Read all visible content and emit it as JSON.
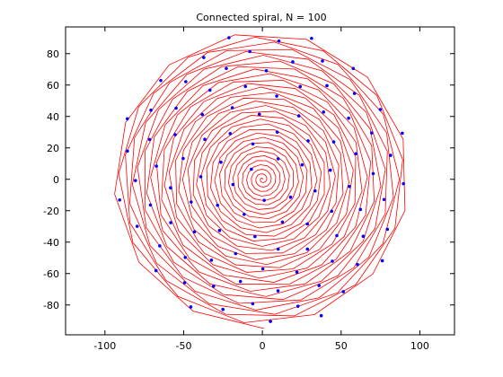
{
  "chart_data": {
    "type": "line",
    "title": "Connected spiral, N = 100",
    "xlabel": "",
    "ylabel": "",
    "xlim": [
      -125,
      122
    ],
    "ylim": [
      -99,
      97
    ],
    "xticks": [
      -100,
      -50,
      0,
      50,
      100
    ],
    "xtick_labels": [
      "-100",
      "-50",
      "0",
      "50",
      "100"
    ],
    "yticks": [
      -80,
      -60,
      -40,
      -20,
      0,
      20,
      40,
      60,
      80
    ],
    "ytick_labels": [
      "-80",
      "-60",
      "-40",
      "-20",
      "0",
      "20",
      "40",
      "60",
      "80"
    ],
    "grid": false,
    "legend": "none",
    "point_count": 100,
    "max_radius": 95,
    "golden_angle_deg": 137.508,
    "vertices_per_turn": 13,
    "colors": {
      "line": "#ff0000",
      "points": "#0000ff",
      "axes": "#000000",
      "background": "#ffffff"
    }
  }
}
